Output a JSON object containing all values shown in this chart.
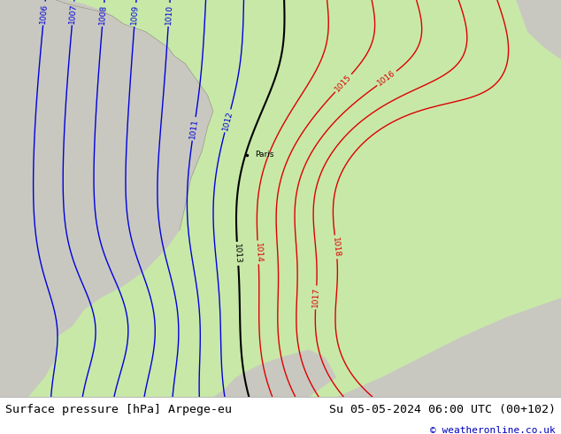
{
  "title_left": "Surface pressure [hPa] Arpege-eu",
  "title_right": "Su 05-05-2024 06:00 UTC (00+102)",
  "credit": "© weatheronline.co.uk",
  "land_color_gray": "#c8c8c0",
  "land_color_green": "#c8e8a8",
  "bottom_bar_color": "#ffffff",
  "contour_blue_color": "#0000dd",
  "contour_black_color": "#000000",
  "contour_red_color": "#dd0000",
  "fig_width": 6.34,
  "fig_height": 4.9,
  "dpi": 100,
  "title_fontsize": 9.5,
  "credit_fontsize": 8,
  "label_fontsize": 6.5
}
